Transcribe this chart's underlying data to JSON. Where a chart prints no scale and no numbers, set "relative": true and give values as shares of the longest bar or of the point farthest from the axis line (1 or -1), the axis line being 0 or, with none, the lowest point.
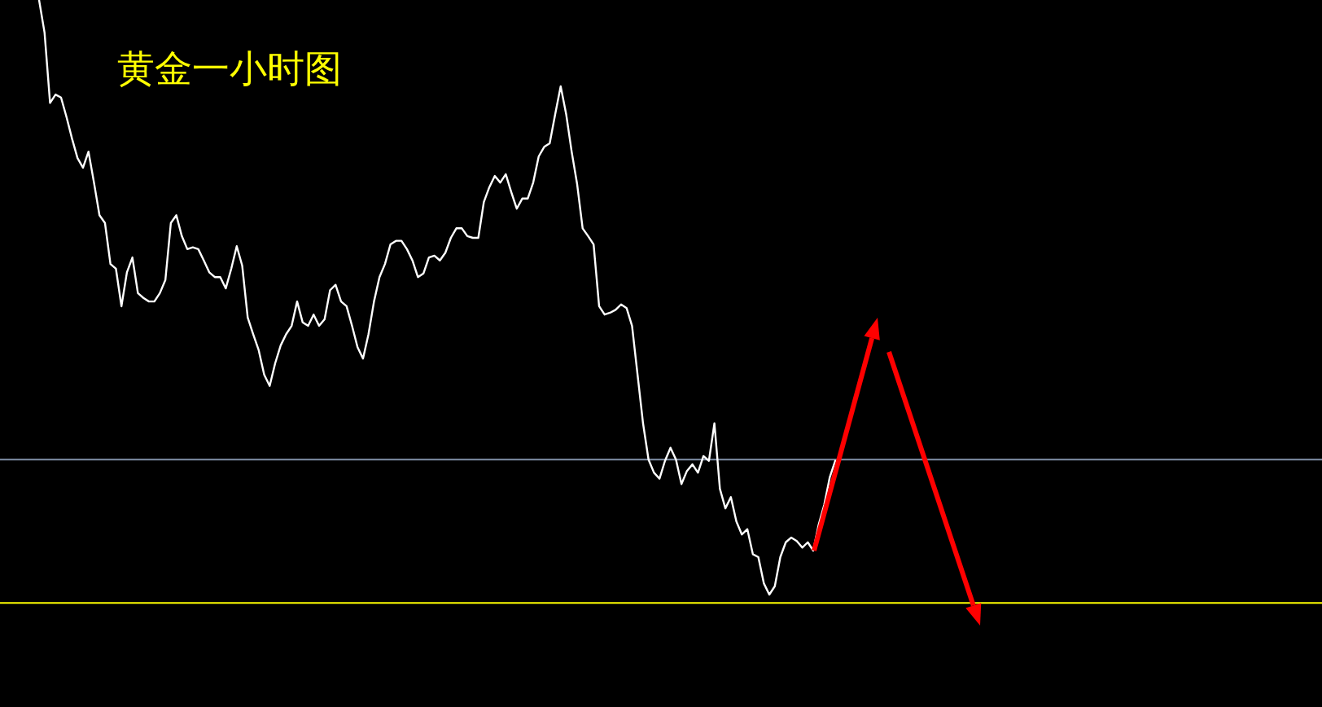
{
  "chart_data": {
    "type": "line",
    "title": "黄金一小时图",
    "relative": true,
    "categories": [
      null,
      null,
      null,
      null,
      null,
      null,
      null,
      null,
      null,
      null,
      null,
      null,
      null,
      null,
      null,
      null,
      null,
      null,
      null,
      null,
      null,
      null,
      null,
      null,
      null,
      null,
      null,
      null,
      null,
      null,
      null,
      null,
      null,
      null,
      null,
      null,
      null,
      null,
      null,
      null,
      null,
      null,
      null,
      null,
      null,
      null,
      null,
      null,
      null,
      null,
      null,
      null,
      null,
      null,
      null,
      null,
      null,
      null,
      null,
      null,
      null,
      null,
      null,
      null,
      null,
      null,
      null,
      null,
      null,
      null,
      null,
      null,
      null,
      null,
      null,
      null,
      null,
      null,
      null,
      null,
      null,
      null,
      null,
      null,
      null,
      null,
      null,
      null,
      null,
      null,
      null,
      null,
      null,
      null,
      null,
      null,
      null,
      null,
      null,
      null,
      null,
      null,
      null,
      null,
      null,
      null,
      null,
      null,
      null,
      null,
      null,
      null,
      null,
      null,
      null,
      null,
      null,
      null,
      null,
      null,
      null,
      null,
      null,
      null,
      null,
      null,
      null,
      null,
      null,
      null,
      null,
      null,
      null,
      null,
      null,
      null,
      null,
      null,
      null,
      null,
      null,
      null,
      null,
      null,
      null,
      null
    ],
    "series": [
      {
        "color": "#ffffff",
        "values": [
          1,
          0.945,
          0.827,
          0.841,
          0.836,
          0.803,
          0.767,
          0.734,
          0.718,
          0.745,
          0.693,
          0.638,
          0.625,
          0.556,
          0.548,
          0.485,
          0.542,
          0.567,
          0.507,
          0.499,
          0.493,
          0.493,
          0.507,
          0.529,
          0.625,
          0.638,
          0.603,
          0.581,
          0.584,
          0.581,
          0.562,
          0.542,
          0.534,
          0.534,
          0.515,
          0.548,
          0.586,
          0.553,
          0.466,
          0.438,
          0.411,
          0.37,
          0.351,
          0.389,
          0.419,
          0.438,
          0.452,
          0.493,
          0.458,
          0.452,
          0.471,
          0.452,
          0.463,
          0.512,
          0.521,
          0.493,
          0.485,
          0.452,
          0.416,
          0.397,
          0.438,
          0.493,
          0.534,
          0.556,
          0.589,
          0.595,
          0.595,
          0.581,
          0.562,
          0.534,
          0.54,
          0.567,
          0.57,
          0.562,
          0.575,
          0.6,
          0.616,
          0.616,
          0.603,
          0.6,
          0.6,
          0.66,
          0.685,
          0.704,
          0.693,
          0.707,
          0.677,
          0.649,
          0.666,
          0.666,
          0.693,
          0.737,
          0.753,
          0.759,
          0.808,
          0.855,
          0.808,
          0.745,
          0.69,
          0.616,
          0.603,
          0.589,
          0.485,
          0.471,
          0.474,
          0.479,
          0.488,
          0.482,
          0.452,
          0.37,
          0.288,
          0.227,
          0.205,
          0.195,
          0.225,
          0.247,
          0.227,
          0.186,
          0.208,
          0.219,
          0.205,
          0.233,
          0.225,
          0.288,
          0.178,
          0.145,
          0.164,
          0.123,
          0.101,
          0.11,
          0.068,
          0.063,
          0.019,
          0,
          0.014,
          0.063,
          0.088,
          0.096,
          0.09,
          0.079,
          0.088,
          0.074,
          0.118,
          0.151,
          0.197,
          0.225
        ]
      }
    ],
    "ref_lines": [
      {
        "axis": "y",
        "value": 0.227,
        "color": "#8090a8"
      },
      {
        "axis": "y",
        "value": -0.014,
        "color": "#ffff00"
      }
    ]
  }
}
